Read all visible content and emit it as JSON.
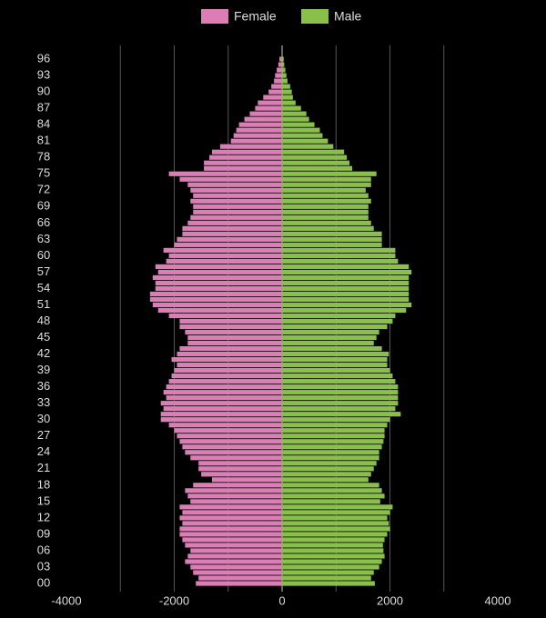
{
  "chart_data": {
    "type": "pyramid",
    "categories": [
      "00",
      null,
      null,
      "03",
      null,
      null,
      "06",
      null,
      null,
      "09",
      null,
      null,
      "12",
      null,
      null,
      "15",
      null,
      null,
      "18",
      null,
      null,
      "21",
      null,
      null,
      "24",
      null,
      null,
      "27",
      null,
      null,
      "30",
      null,
      null,
      "33",
      null,
      null,
      "36",
      null,
      null,
      "39",
      null,
      null,
      "42",
      null,
      null,
      "45",
      null,
      null,
      "48",
      null,
      null,
      "51",
      null,
      null,
      "54",
      null,
      null,
      "57",
      null,
      null,
      "60",
      null,
      null,
      "63",
      null,
      null,
      "66",
      null,
      null,
      "69",
      null,
      null,
      "72",
      null,
      null,
      "75",
      null,
      null,
      "78",
      null,
      null,
      "81",
      null,
      null,
      "84",
      null,
      null,
      "87",
      null,
      null,
      "90",
      null,
      null,
      "93",
      null,
      null,
      "96"
    ],
    "series": [
      {
        "name": "Female",
        "color": "#dc7db6",
        "values": [
          -1600,
          -1550,
          -1650,
          -1700,
          -1800,
          -1750,
          -1700,
          -1800,
          -1850,
          -1900,
          -1900,
          -1850,
          -1900,
          -1850,
          -1900,
          -1700,
          -1750,
          -1800,
          -1650,
          -1300,
          -1500,
          -1550,
          -1550,
          -1700,
          -1800,
          -1850,
          -1900,
          -1950,
          -2000,
          -2100,
          -2250,
          -2250,
          -2200,
          -2250,
          -2150,
          -2200,
          -2150,
          -2100,
          -2050,
          -2000,
          -1950,
          -2050,
          -1950,
          -1900,
          -1750,
          -1750,
          -1800,
          -1900,
          -1900,
          -2100,
          -2300,
          -2400,
          -2450,
          -2450,
          -2350,
          -2350,
          -2400,
          -2300,
          -2350,
          -2150,
          -2100,
          -2200,
          -2000,
          -1950,
          -1850,
          -1850,
          -1750,
          -1700,
          -1650,
          -1650,
          -1700,
          -1650,
          -1700,
          -1750,
          -1900,
          -2100,
          -1450,
          -1450,
          -1350,
          -1300,
          -1150,
          -950,
          -900,
          -850,
          -800,
          -700,
          -600,
          -500,
          -450,
          -350,
          -250,
          -200,
          -150,
          -130,
          -100,
          -70,
          -50
        ]
      },
      {
        "name": "Male",
        "color": "#88c04a",
        "values": [
          1720,
          1650,
          1700,
          1800,
          1850,
          1900,
          1880,
          1870,
          1900,
          1950,
          2000,
          1980,
          1950,
          2000,
          2050,
          1820,
          1900,
          1850,
          1800,
          1600,
          1650,
          1700,
          1750,
          1800,
          1800,
          1850,
          1880,
          1900,
          1900,
          1950,
          2000,
          2200,
          2100,
          2150,
          2150,
          2150,
          2150,
          2100,
          2050,
          2000,
          1950,
          1950,
          1980,
          1850,
          1700,
          1750,
          1800,
          1950,
          2050,
          2100,
          2300,
          2400,
          2350,
          2350,
          2350,
          2350,
          2350,
          2400,
          2350,
          2150,
          2100,
          2100,
          1850,
          1850,
          1850,
          1700,
          1650,
          1600,
          1600,
          1600,
          1650,
          1600,
          1550,
          1650,
          1650,
          1750,
          1300,
          1250,
          1200,
          1150,
          950,
          850,
          750,
          700,
          600,
          500,
          450,
          350,
          250,
          200,
          180,
          150,
          100,
          80,
          60,
          40,
          30
        ]
      }
    ],
    "xlim": [
      -4000,
      4000
    ],
    "xticks": [
      -4000,
      -2000,
      0,
      2000,
      4000
    ],
    "xgrid": [
      -3000,
      -2000,
      -1000,
      0,
      1000,
      2000,
      3000
    ]
  }
}
